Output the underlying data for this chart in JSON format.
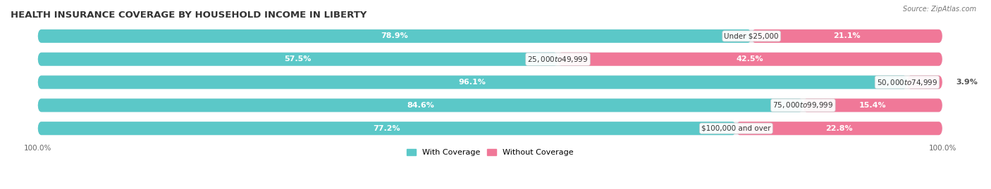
{
  "title": "HEALTH INSURANCE COVERAGE BY HOUSEHOLD INCOME IN LIBERTY",
  "source": "Source: ZipAtlas.com",
  "categories": [
    "Under $25,000",
    "$25,000 to $49,999",
    "$50,000 to $74,999",
    "$75,000 to $99,999",
    "$100,000 and over"
  ],
  "with_coverage": [
    78.9,
    57.5,
    96.1,
    84.6,
    77.2
  ],
  "without_coverage": [
    21.1,
    42.5,
    3.9,
    15.4,
    22.8
  ],
  "color_with": "#5bc8c8",
  "color_without": "#f07898",
  "bar_bg": "#e8e8ee",
  "title_fontsize": 9.5,
  "label_fontsize": 8.0,
  "tick_fontsize": 7.5,
  "bar_height": 0.58,
  "legend_labels": [
    "With Coverage",
    "Without Coverage"
  ]
}
